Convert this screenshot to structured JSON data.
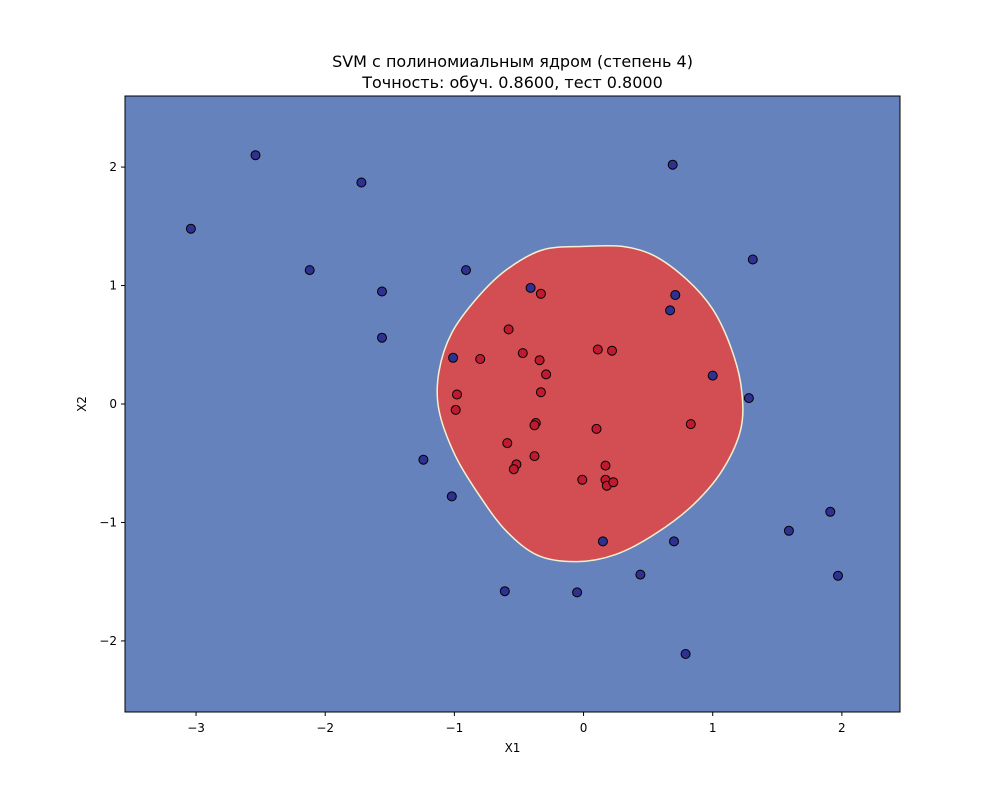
{
  "chart_data": {
    "type": "scatter",
    "title": "SVM с полиномиальным ядром (степень 4)",
    "subtitle": "Точность: обуч. 0.8600, тест 0.8000",
    "xlabel": "X1",
    "ylabel": "X2",
    "xlim": [
      -3.55,
      2.45
    ],
    "ylim": [
      -2.6,
      2.6
    ],
    "x_ticks": [
      -3,
      -2,
      -1,
      0,
      1,
      2
    ],
    "y_ticks": [
      -2,
      -1,
      0,
      1,
      2
    ],
    "x_tick_labels": [
      "−3",
      "−2",
      "−1",
      "0",
      "1",
      "2"
    ],
    "y_tick_labels": [
      "−2",
      "−1",
      "0",
      "1",
      "2"
    ],
    "grid": false,
    "legend": "none",
    "colors": {
      "background_region": "#6682bc",
      "decision_region": "#d24e52",
      "boundary": "#f5f0d0",
      "class0_point": "#2e3192",
      "class1_point": "#bf1a2f",
      "point_edge": "#000000"
    },
    "decision_region": [
      [
        -0.32,
        1.3
      ],
      [
        0.0,
        1.33
      ],
      [
        0.3,
        1.33
      ],
      [
        0.55,
        1.25
      ],
      [
        0.8,
        1.05
      ],
      [
        1.0,
        0.8
      ],
      [
        1.14,
        0.48
      ],
      [
        1.22,
        0.15
      ],
      [
        1.22,
        -0.2
      ],
      [
        1.08,
        -0.55
      ],
      [
        0.85,
        -0.85
      ],
      [
        0.55,
        -1.1
      ],
      [
        0.25,
        -1.27
      ],
      [
        -0.05,
        -1.33
      ],
      [
        -0.35,
        -1.28
      ],
      [
        -0.6,
        -1.07
      ],
      [
        -0.82,
        -0.75
      ],
      [
        -1.0,
        -0.42
      ],
      [
        -1.12,
        -0.05
      ],
      [
        -1.12,
        0.27
      ],
      [
        -1.02,
        0.6
      ],
      [
        -0.82,
        0.9
      ],
      [
        -0.6,
        1.13
      ]
    ],
    "series": [
      {
        "class": 0,
        "points": [
          [
            -3.04,
            1.48
          ],
          [
            -2.54,
            2.1
          ],
          [
            -1.72,
            1.87
          ],
          [
            -2.12,
            1.13
          ],
          [
            -1.56,
            0.95
          ],
          [
            -1.56,
            0.56
          ],
          [
            -0.91,
            1.13
          ],
          [
            -0.41,
            0.98
          ],
          [
            -1.01,
            0.39
          ],
          [
            -1.24,
            -0.47
          ],
          [
            -1.02,
            -0.78
          ],
          [
            -0.61,
            -1.58
          ],
          [
            -0.05,
            -1.59
          ],
          [
            0.69,
            2.02
          ],
          [
            1.31,
            1.22
          ],
          [
            0.71,
            0.92
          ],
          [
            0.67,
            0.79
          ],
          [
            1.0,
            0.24
          ],
          [
            1.28,
            0.05
          ],
          [
            0.15,
            -1.16
          ],
          [
            0.7,
            -1.16
          ],
          [
            1.59,
            -1.07
          ],
          [
            1.91,
            -0.91
          ],
          [
            1.97,
            -1.45
          ],
          [
            0.44,
            -1.44
          ],
          [
            0.79,
            -2.11
          ]
        ]
      },
      {
        "class": 1,
        "points": [
          [
            -0.33,
            0.93
          ],
          [
            -0.58,
            0.63
          ],
          [
            -0.8,
            0.38
          ],
          [
            -0.47,
            0.43
          ],
          [
            -0.34,
            0.37
          ],
          [
            -0.29,
            0.25
          ],
          [
            -0.33,
            0.1
          ],
          [
            -0.98,
            0.08
          ],
          [
            -0.99,
            -0.05
          ],
          [
            -0.37,
            -0.16
          ],
          [
            -0.38,
            -0.18
          ],
          [
            -0.59,
            -0.33
          ],
          [
            -0.38,
            -0.44
          ],
          [
            -0.52,
            -0.51
          ],
          [
            -0.54,
            -0.55
          ],
          [
            -0.01,
            -0.64
          ],
          [
            0.11,
            0.46
          ],
          [
            0.22,
            0.45
          ],
          [
            0.1,
            -0.21
          ],
          [
            0.17,
            -0.52
          ],
          [
            0.17,
            -0.64
          ],
          [
            0.18,
            -0.69
          ],
          [
            0.23,
            -0.66
          ],
          [
            0.83,
            -0.17
          ]
        ]
      }
    ]
  }
}
